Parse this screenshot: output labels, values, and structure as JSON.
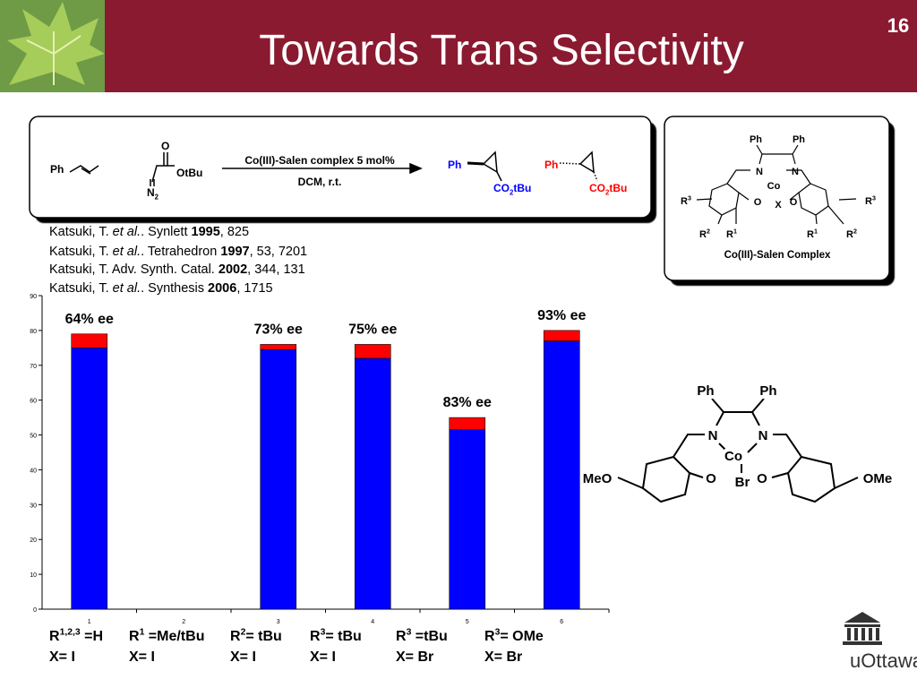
{
  "slide": {
    "title": "Towards Trans Selectivity",
    "number": "16",
    "logo": "uOttawa"
  },
  "scheme": {
    "reagent": "Ph",
    "carbonyl": "O",
    "ester": "OtBu",
    "diazo": [
      "N",
      "2"
    ],
    "conditions_top": "Co(III)-Salen complex 5 mol%",
    "conditions_bottom": "DCM, r.t.",
    "product1": {
      "ph": "Ph",
      "ester": [
        "CO",
        "2",
        "tBu"
      ]
    },
    "product2": {
      "ph": "Ph",
      "ester": [
        "CO",
        "2",
        "tBu"
      ]
    }
  },
  "references": [
    [
      "Katsuki, T. ",
      "et al.",
      ". Synlett ",
      "1995",
      ", 825"
    ],
    [
      "Katsuki, T. ",
      "et al.",
      ". Tetrahedron ",
      "1997",
      ", 53, 7201"
    ],
    [
      "Katsuki, T. Adv. Synth. Catal. ",
      "2002",
      ", 344, 131"
    ],
    [
      "Katsuki, T. ",
      "et al.",
      ". Synthesis ",
      "2006",
      ", 1715"
    ]
  ],
  "catalyst_general": {
    "labels": [
      {
        "text": "Ph"
      },
      {
        "text": "Ph"
      },
      {
        "text": "N"
      },
      {
        "text": "N"
      },
      {
        "text": "Co"
      },
      {
        "text": "X"
      },
      {
        "text": "O"
      },
      {
        "text": "O"
      },
      {
        "text": "R",
        "sup": "3"
      },
      {
        "text": "R",
        "sup": "3"
      },
      {
        "text": "R",
        "sup": "2"
      },
      {
        "text": "R",
        "sup": "1"
      },
      {
        "text": "R",
        "sup": "1"
      },
      {
        "text": "R",
        "sup": "2"
      }
    ],
    "caption": "Co(III)-Salen Complex"
  },
  "catalyst_specific": {
    "labels": [
      "Ph",
      "Ph",
      "N",
      "N",
      "Co",
      "Br",
      "O",
      "O",
      "MeO",
      "OMe"
    ]
  },
  "substituents": [
    {
      "r": [
        "R",
        "1,2,3",
        " =H"
      ],
      "x": "X= I"
    },
    {
      "r": [
        "R",
        "1",
        " =Me/tBu"
      ],
      "x": "X= I"
    },
    {
      "r": [
        "R",
        "2",
        "= tBu"
      ],
      "x": "X= I"
    },
    {
      "r": [
        "R",
        "3",
        "= tBu"
      ],
      "x": "X= I"
    },
    {
      "r": [
        "R",
        "3",
        " =tBu"
      ],
      "x": "X= Br"
    },
    {
      "r": [
        "R",
        "3",
        "= OMe"
      ],
      "x": "X= Br"
    }
  ],
  "chart_data": {
    "type": "stacked_bar",
    "categories": [
      "1",
      "2",
      "3",
      "4",
      "5",
      "6"
    ],
    "series": [
      {
        "color": "#0000ff",
        "values": [
          75,
          null,
          74.5,
          72,
          51.5,
          77
        ]
      },
      {
        "color": "#ff0000",
        "values": [
          4,
          null,
          1.5,
          4,
          3.5,
          3
        ]
      }
    ],
    "value_labels": [
      "64% ee",
      null,
      "73% ee",
      "75% ee",
      "83% ee",
      "93% ee"
    ],
    "ylim": [
      0,
      90
    ],
    "yticks": [
      0,
      10,
      20,
      30,
      40,
      50,
      60,
      70,
      80,
      90
    ],
    "grid": false
  }
}
